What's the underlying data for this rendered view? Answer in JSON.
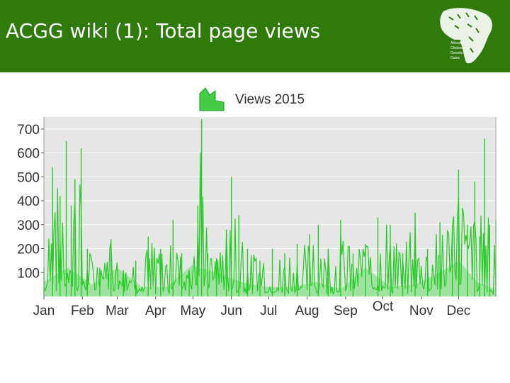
{
  "slide": {
    "title": "ACGG wiki (1): Total page views"
  },
  "logo": {
    "name": "african-chicken-genetic-gains-logo",
    "text_lines": [
      "African",
      "Chicken",
      "Genetic",
      "Gains"
    ]
  },
  "colors": {
    "header": "#2f7a0a",
    "views_line": "#22cc22",
    "views_fill": "#99e099",
    "plot_background": "#e6e6e6"
  },
  "chart_data": {
    "type": "area",
    "title": "Views 2015",
    "legend": [
      {
        "label": "Views 2015",
        "position": "top-center"
      }
    ],
    "xlabel": "",
    "ylabel": "",
    "ylim": [
      0,
      750
    ],
    "yticks": [
      100,
      200,
      300,
      400,
      500,
      600,
      700
    ],
    "month_labels": [
      "Jan",
      "Feb",
      "Mar",
      "Apr",
      "May",
      "Jun",
      "Jul",
      "Aug",
      "Sep",
      "Oct",
      "Nov",
      "Dec"
    ],
    "grid": true,
    "series": [
      {
        "name": "Views 2015",
        "x_unit": "day of year 2015",
        "points": [
          [
            1,
            120
          ],
          [
            8,
            540
          ],
          [
            14,
            420
          ],
          [
            19,
            650
          ],
          [
            23,
            380
          ],
          [
            26,
            490
          ],
          [
            31,
            620
          ],
          [
            36,
            200
          ],
          [
            46,
            120
          ],
          [
            55,
            240
          ],
          [
            65,
            110
          ],
          [
            75,
            150
          ],
          [
            85,
            250
          ],
          [
            95,
            200
          ],
          [
            105,
            320
          ],
          [
            112,
            180
          ],
          [
            118,
            90
          ],
          [
            125,
            380
          ],
          [
            128,
            740
          ],
          [
            133,
            180
          ],
          [
            140,
            160
          ],
          [
            148,
            280
          ],
          [
            152,
            500
          ],
          [
            158,
            340
          ],
          [
            165,
            200
          ],
          [
            175,
            150
          ],
          [
            185,
            200
          ],
          [
            195,
            180
          ],
          [
            205,
            220
          ],
          [
            215,
            260
          ],
          [
            222,
            300
          ],
          [
            230,
            200
          ],
          [
            240,
            320
          ],
          [
            250,
            180
          ],
          [
            260,
            220
          ],
          [
            270,
            330
          ],
          [
            280,
            300
          ],
          [
            290,
            180
          ],
          [
            300,
            350
          ],
          [
            310,
            200
          ],
          [
            320,
            310
          ],
          [
            330,
            300
          ],
          [
            335,
            530
          ],
          [
            342,
            300
          ],
          [
            348,
            480
          ],
          [
            352,
            250
          ],
          [
            356,
            660
          ],
          [
            360,
            300
          ],
          [
            365,
            320
          ]
        ],
        "baseline_points": [
          [
            1,
            60
          ],
          [
            20,
            120
          ],
          [
            40,
            50
          ],
          [
            60,
            120
          ],
          [
            80,
            40
          ],
          [
            100,
            40
          ],
          [
            120,
            130
          ],
          [
            140,
            100
          ],
          [
            160,
            60
          ],
          [
            180,
            40
          ],
          [
            200,
            40
          ],
          [
            220,
            60
          ],
          [
            240,
            30
          ],
          [
            260,
            120
          ],
          [
            280,
            40
          ],
          [
            300,
            50
          ],
          [
            320,
            100
          ],
          [
            335,
            150
          ],
          [
            350,
            60
          ],
          [
            365,
            30
          ]
        ]
      }
    ]
  }
}
